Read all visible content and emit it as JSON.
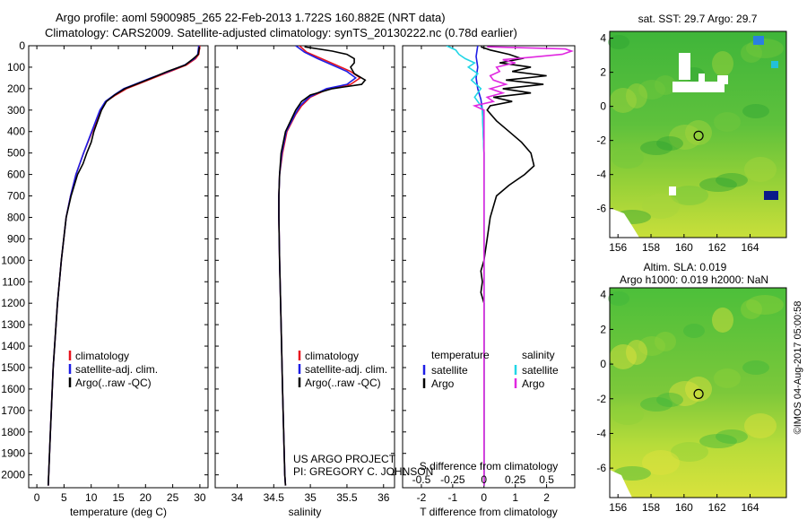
{
  "header": {
    "line1": "Argo profile: aoml 5900985_265 22-Feb-2013 1.722S 160.882E (NRT data)",
    "line2": "Climatology: CARS2009. Satellite-adjusted climatology: synTS_20130222.nc (0.78d earlier)"
  },
  "colors": {
    "climatology": "#e8141e",
    "satellite": "#1e1ee6",
    "argo": "#000000",
    "salinity_satellite": "#22d6e6",
    "salinity_argo": "#e028e0"
  },
  "chart_data": [
    {
      "type": "line",
      "title": "",
      "xlabel": "temperature (deg C)",
      "ylabel": "",
      "xlim": [
        -1.5,
        31.5
      ],
      "ylim": [
        2060,
        0
      ],
      "x_ticks": [
        0,
        5,
        10,
        15,
        20,
        25,
        30
      ],
      "y_ticks": [
        0,
        100,
        200,
        300,
        400,
        500,
        600,
        700,
        800,
        900,
        1000,
        1100,
        1200,
        1300,
        1400,
        1500,
        1600,
        1700,
        1800,
        1900,
        2000
      ],
      "legend": [
        "climatology",
        "satellite-adj. clim.",
        "Argo(..raw -QC)"
      ],
      "series": [
        {
          "name": "climatology",
          "color": "#e8141e",
          "depth": [
            0,
            40,
            60,
            90,
            120,
            150,
            180,
            200,
            230,
            260,
            300,
            400,
            500,
            600,
            700,
            800,
            1000,
            1200,
            1500,
            1800,
            2050
          ],
          "values": [
            30,
            29.8,
            29.2,
            27.5,
            24.5,
            21.5,
            18.5,
            16.5,
            14.5,
            12.7,
            11.8,
            10.2,
            8.6,
            7.2,
            6.2,
            5.4,
            4.5,
            3.8,
            3.0,
            2.5,
            2.1
          ]
        },
        {
          "name": "satellite-adj. clim.",
          "color": "#1e1ee6",
          "depth": [
            0,
            40,
            60,
            90,
            120,
            150,
            180,
            200,
            230,
            260,
            300,
            400,
            500,
            600,
            700,
            800,
            1000,
            1200,
            1500,
            1800,
            2050
          ],
          "values": [
            29.8,
            29.6,
            29.0,
            27.2,
            24.2,
            21.0,
            18.0,
            16.0,
            14.2,
            12.6,
            11.6,
            10.1,
            8.6,
            7.2,
            6.2,
            5.4,
            4.5,
            3.8,
            3.0,
            2.5,
            2.1
          ]
        },
        {
          "name": "Argo(..raw -QC)",
          "color": "#000000",
          "depth": [
            5,
            40,
            60,
            90,
            120,
            150,
            180,
            200,
            230,
            260,
            300,
            400,
            450,
            500,
            550,
            600,
            700,
            800,
            1000,
            1200,
            1500,
            1800,
            2050
          ],
          "values": [
            29.9,
            29.7,
            28.8,
            27.3,
            24.0,
            21.2,
            18.2,
            16.2,
            14.3,
            12.8,
            11.9,
            10.5,
            10.0,
            9.2,
            8.5,
            7.5,
            6.3,
            5.4,
            4.5,
            3.8,
            3.0,
            2.5,
            2.1
          ]
        }
      ]
    },
    {
      "type": "line",
      "xlabel": "salinity",
      "xlim": [
        33.7,
        36.15
      ],
      "ylim": [
        2060,
        0
      ],
      "x_ticks": [
        34,
        34.5,
        35,
        35.5,
        36
      ],
      "x_tick_labels": [
        "34",
        "34.5",
        "35",
        "35.5",
        "36"
      ],
      "legend": [
        "climatology",
        "satellite-adj. clim.",
        "Argo(..raw -QC)"
      ],
      "annotation": [
        "US ARGO PROJECT",
        "PI: GREGORY C. JOHNSON"
      ],
      "series": [
        {
          "name": "climatology",
          "color": "#e8141e",
          "depth": [
            0,
            30,
            60,
            90,
            120,
            150,
            180,
            200,
            240,
            280,
            320,
            400,
            500,
            600,
            700,
            800,
            1000,
            1300,
            1600,
            2000,
            2050
          ],
          "values": [
            34.85,
            34.95,
            35.15,
            35.35,
            35.55,
            35.68,
            35.55,
            35.25,
            35.0,
            34.88,
            34.8,
            34.68,
            34.62,
            34.58,
            34.57,
            34.57,
            34.58,
            34.6,
            34.62,
            34.65,
            34.66
          ]
        },
        {
          "name": "satellite-adj. clim.",
          "color": "#1e1ee6",
          "depth": [
            0,
            30,
            60,
            90,
            120,
            150,
            180,
            200,
            240,
            280,
            320,
            400,
            500,
            600,
            700,
            800,
            1000,
            1300,
            1600,
            2000,
            2050
          ],
          "values": [
            34.8,
            34.92,
            35.1,
            35.3,
            35.5,
            35.62,
            35.5,
            35.22,
            34.98,
            34.86,
            34.79,
            34.67,
            34.61,
            34.58,
            34.57,
            34.57,
            34.58,
            34.6,
            34.62,
            34.65,
            34.66
          ]
        },
        {
          "name": "Argo(..raw -QC)",
          "color": "#000000",
          "depth": [
            5,
            25,
            40,
            60,
            80,
            100,
            130,
            160,
            180,
            200,
            230,
            260,
            300,
            400,
            500,
            600,
            700,
            800,
            1000,
            1300,
            1600,
            2000,
            2050
          ],
          "values": [
            34.92,
            35.3,
            35.5,
            35.6,
            35.6,
            35.55,
            35.6,
            35.75,
            35.7,
            35.3,
            35.0,
            34.88,
            34.8,
            34.66,
            34.6,
            34.58,
            34.57,
            34.57,
            34.58,
            34.6,
            34.62,
            34.65,
            34.66
          ]
        }
      ]
    },
    {
      "type": "line",
      "xlabel": "T difference from climatology",
      "xlabel2": "S difference from climatology",
      "xlim": [
        -2.6,
        2.9
      ],
      "ylim": [
        2060,
        0
      ],
      "x_ticks": [
        -2,
        -1,
        0,
        1,
        2
      ],
      "x_tick_labels": [
        "-2",
        "-1",
        "0",
        "1",
        "2"
      ],
      "x2_ticks": [
        -2,
        -1,
        0,
        1,
        2
      ],
      "x2_tick_labels": [
        "-0.5",
        "-0.25",
        "0",
        "0.25",
        "0.5"
      ],
      "legend_temperature": {
        "title": "temperature",
        "items": [
          "satellite",
          "Argo"
        ]
      },
      "legend_salinity": {
        "title": "salinity",
        "items": [
          "satellite",
          "Argo"
        ]
      },
      "series": [
        {
          "name": "temperature satellite",
          "color": "#1e1ee6",
          "depth": [
            0,
            50,
            100,
            150,
            200,
            250,
            300,
            500,
            1000,
            1500,
            2050
          ],
          "values": [
            -0.2,
            -0.25,
            -0.2,
            -0.25,
            -0.2,
            -0.1,
            -0.05,
            0,
            0,
            0,
            0
          ]
        },
        {
          "name": "temperature Argo",
          "color": "#000000",
          "depth": [
            5,
            20,
            40,
            60,
            80,
            100,
            120,
            140,
            160,
            180,
            200,
            220,
            240,
            260,
            280,
            300,
            350,
            400,
            450,
            500,
            560,
            600,
            650,
            700,
            800,
            900,
            1000,
            1050,
            1100,
            1150,
            1200,
            1300,
            1500,
            1800,
            2050
          ],
          "values": [
            -0.1,
            0.2,
            0.8,
            1.2,
            0.5,
            1.5,
            0.9,
            2.0,
            0.7,
            1.9,
            0.6,
            1.5,
            0.3,
            0.9,
            0.2,
            0.1,
            0.4,
            0.8,
            1.2,
            1.5,
            1.6,
            1.3,
            0.8,
            0.4,
            0.2,
            0.1,
            0,
            -0.1,
            -0.05,
            -0.1,
            0,
            0,
            0,
            0,
            0
          ]
        },
        {
          "name": "salinity satellite",
          "color": "#22d6e6",
          "depth": [
            0,
            20,
            40,
            60,
            80,
            100,
            130,
            160,
            200,
            240,
            280,
            300,
            500,
            1000,
            1500,
            2050
          ],
          "values": [
            -1.2,
            -0.9,
            -0.8,
            -0.6,
            -0.3,
            -0.5,
            -0.2,
            -0.4,
            -0.1,
            -0.3,
            -0.1,
            -0.05,
            0,
            0,
            0,
            0
          ]
        },
        {
          "name": "salinity Argo",
          "color": "#e028e0",
          "depth": [
            5,
            15,
            25,
            40,
            55,
            65,
            80,
            100,
            120,
            140,
            160,
            180,
            200,
            220,
            240,
            260,
            280,
            300,
            350,
            500,
            1000,
            2050
          ],
          "values": [
            0.1,
            2.6,
            2.8,
            2.5,
            1.4,
            0.6,
            1.0,
            0.4,
            0.5,
            0.2,
            0.3,
            0.7,
            0.2,
            0.6,
            0.1,
            0.3,
            -0.3,
            0,
            0,
            0,
            0,
            0
          ]
        }
      ]
    },
    {
      "type": "heatmap",
      "title": "sat. SST: 29.7 Argo: 29.7",
      "x_tick_labels": [
        "156",
        "158",
        "160",
        "162",
        "164"
      ],
      "y_tick_labels": [
        "4",
        "2",
        "0",
        "-2",
        "-4",
        "-6"
      ],
      "xlim": [
        155.5,
        166.2
      ],
      "ylim": [
        -7.7,
        4.4
      ],
      "marker": [
        160.882,
        -1.722
      ]
    },
    {
      "type": "heatmap",
      "title_line1": "Altim. SLA: 0.019",
      "title_line2": "Argo h1000: 0.019 h2000: NaN",
      "x_tick_labels": [
        "156",
        "158",
        "160",
        "162",
        "164"
      ],
      "y_tick_labels": [
        "4",
        "2",
        "0",
        "-2",
        "-4",
        "-6"
      ],
      "xlim": [
        155.5,
        166.2
      ],
      "ylim": [
        -7.7,
        4.4
      ],
      "marker": [
        160.882,
        -1.722
      ]
    }
  ],
  "side_label": "©IMOS 04-Aug-2017 05:00:58"
}
